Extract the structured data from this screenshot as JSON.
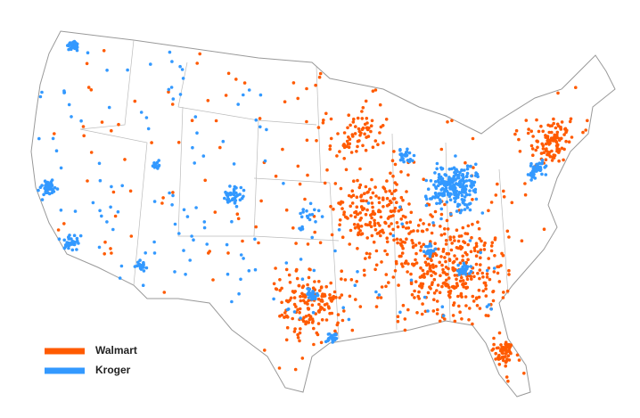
{
  "legend": [
    {
      "name": "Walmart",
      "color": "#ff5a00"
    },
    {
      "name": "Kroger",
      "color": "#3399ff"
    }
  ]
}
